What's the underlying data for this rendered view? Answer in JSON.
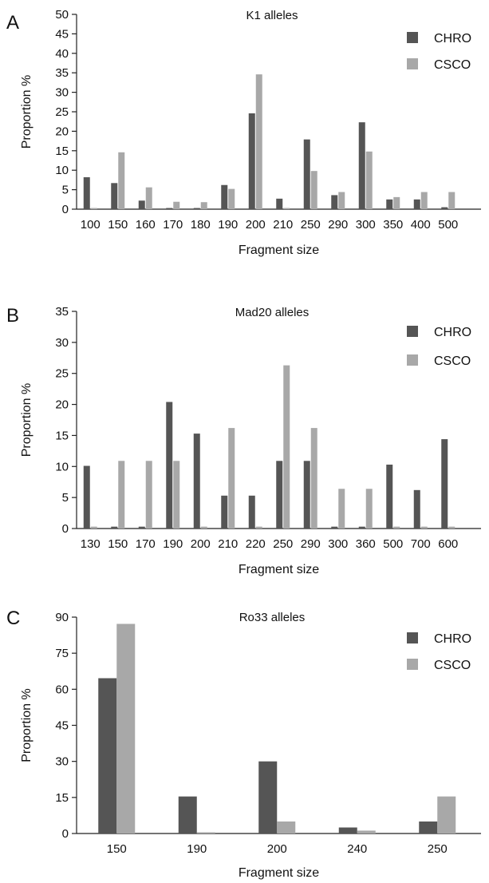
{
  "chart_data": [
    {
      "type": "bar",
      "panel_label": "A",
      "title": "K1 alleles",
      "xlabel": "Fragment size",
      "ylabel": "Proportion %",
      "ylim": [
        0,
        50
      ],
      "yticks": [
        0,
        5,
        10,
        15,
        20,
        25,
        30,
        35,
        40,
        45,
        50
      ],
      "grid": false,
      "legend_position": "top-right",
      "categories": [
        "100",
        "150",
        "160",
        "170",
        "180",
        "190",
        "200",
        "210",
        "250",
        "290",
        "300",
        "350",
        "400",
        "500"
      ],
      "series": [
        {
          "name": "CHRO",
          "color": "#555555",
          "values": [
            8.2,
            6.7,
            2.2,
            0.3,
            0.3,
            6.2,
            24.6,
            2.7,
            17.9,
            3.6,
            22.3,
            2.5,
            2.5,
            0.5
          ]
        },
        {
          "name": "CSCO",
          "color": "#a8a8a8",
          "values": [
            0.3,
            14.6,
            5.6,
            1.9,
            1.8,
            5.2,
            34.6,
            0.3,
            9.8,
            4.4,
            14.8,
            3.1,
            4.4,
            4.4
          ]
        }
      ]
    },
    {
      "type": "bar",
      "panel_label": "B",
      "title": "Mad20 alleles",
      "xlabel": "Fragment size",
      "ylabel": "Proportion %",
      "ylim": [
        0,
        35
      ],
      "yticks": [
        0,
        5,
        10,
        15,
        20,
        25,
        30,
        35
      ],
      "grid": false,
      "legend_position": "top-right",
      "categories": [
        "130",
        "150",
        "170",
        "190",
        "200",
        "210",
        "220",
        "250",
        "290",
        "300",
        "360",
        "500",
        "700",
        "600"
      ],
      "series": [
        {
          "name": "CHRO",
          "color": "#555555",
          "values": [
            10.1,
            0.3,
            0.3,
            20.4,
            15.3,
            5.3,
            5.3,
            10.9,
            10.9,
            0.3,
            0.3,
            10.3,
            6.2,
            14.4
          ]
        },
        {
          "name": "CSCO",
          "color": "#a8a8a8",
          "values": [
            0.3,
            10.9,
            10.9,
            10.9,
            0.3,
            16.2,
            0.3,
            26.3,
            16.2,
            6.4,
            6.4,
            0.3,
            0.3,
            0.3
          ]
        }
      ]
    },
    {
      "type": "bar",
      "panel_label": "C",
      "title": "Ro33 alleles",
      "xlabel": "Fragment size",
      "ylabel": "Proportion %",
      "ylim": [
        0,
        90
      ],
      "yticks": [
        0,
        15,
        30,
        45,
        60,
        75,
        90
      ],
      "grid": false,
      "legend_position": "top-right",
      "categories": [
        "150",
        "190",
        "200",
        "240",
        "250"
      ],
      "series": [
        {
          "name": "CHRO",
          "color": "#555555",
          "values": [
            64.6,
            15.4,
            30.0,
            2.5,
            5.0
          ]
        },
        {
          "name": "CSCO",
          "color": "#a8a8a8",
          "values": [
            87.2,
            0.5,
            5.0,
            1.2,
            15.4
          ]
        }
      ]
    }
  ]
}
